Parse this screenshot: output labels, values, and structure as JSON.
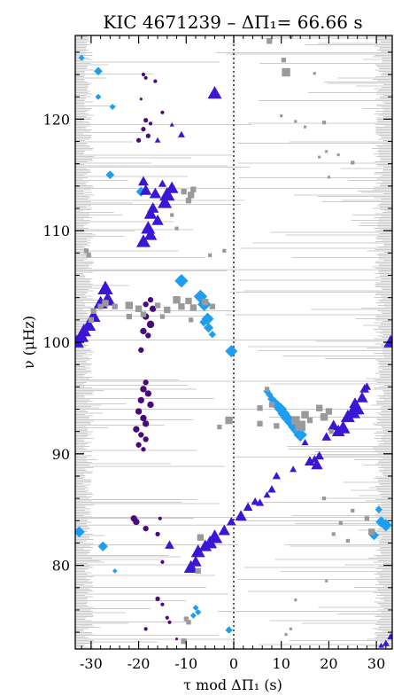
{
  "chart_data": {
    "type": "scatter",
    "title": "KIC 4671239  –  ΔΠ₁= 66.66 s",
    "xlabel": "τ mod ΔΠ₁  (s)",
    "ylabel": "ν (μHz)",
    "xlim": [
      -33.33,
      33.33
    ],
    "ylim": [
      72.5,
      127.5
    ],
    "xticks": [
      "-30",
      "-20",
      "-10",
      "0",
      "10",
      "20",
      "30"
    ],
    "yticks": [
      "80",
      "90",
      "100",
      "110",
      "120"
    ],
    "xtick_values": [
      -30,
      -20,
      -10,
      0,
      10,
      20,
      30
    ],
    "ytick_values": [
      80,
      90,
      100,
      110,
      120
    ],
    "vline_x": 0,
    "grid": false,
    "colors": {
      "gray": "#9a9a9a",
      "background": "#cccccc",
      "cyan": "#1e9ef0",
      "blue": "#3b16d4",
      "purple": "#4a0a78"
    },
    "series": [
      {
        "marker": "diamond",
        "color": "cyan",
        "points": [
          [
            -32,
            125.5,
            5
          ],
          [
            -28.5,
            124.3,
            7
          ],
          [
            -28.5,
            122,
            5
          ],
          [
            -25.5,
            121.1,
            5
          ],
          [
            -26,
            115,
            7
          ],
          [
            -19.5,
            113.5,
            8
          ],
          [
            -11,
            105.5,
            11
          ],
          [
            -7,
            104.1,
            11
          ],
          [
            -6.2,
            103.4,
            11
          ],
          [
            -5.5,
            102.1,
            10
          ],
          [
            -6.3,
            101.8,
            7
          ],
          [
            -5.3,
            101.3,
            8
          ],
          [
            -4.5,
            100.7,
            6
          ],
          [
            -0.5,
            99.2,
            10
          ],
          [
            7,
            95.6,
            6
          ],
          [
            7.5,
            95.3,
            6
          ],
          [
            8,
            94.9,
            7
          ],
          [
            8.6,
            94.6,
            8
          ],
          [
            9.2,
            94.3,
            9
          ],
          [
            9.9,
            94,
            10
          ],
          [
            10.5,
            93.6,
            10
          ],
          [
            11.2,
            93.2,
            10
          ],
          [
            11.9,
            92.8,
            9
          ],
          [
            12.6,
            92.4,
            9
          ],
          [
            13.3,
            92.1,
            10
          ],
          [
            14,
            91.7,
            11
          ],
          [
            -32.5,
            83,
            9
          ],
          [
            -27.5,
            81.7,
            8
          ],
          [
            -25,
            79.5,
            4
          ],
          [
            -8,
            76.2,
            5
          ],
          [
            -7.5,
            75.8,
            5
          ],
          [
            -8.5,
            75.5,
            5
          ],
          [
            -1,
            74.2,
            6
          ],
          [
            29.5,
            82.7,
            8
          ],
          [
            30.5,
            85,
            6
          ],
          [
            31,
            83.9,
            9
          ],
          [
            32,
            83.6,
            10
          ]
        ]
      },
      {
        "marker": "triangle",
        "color": "blue",
        "points": [
          [
            -15,
            114.2,
            7
          ],
          [
            -13,
            113.8,
            11
          ],
          [
            -14,
            113.2,
            13
          ],
          [
            -14.5,
            112.5,
            12
          ],
          [
            -17,
            112,
            10
          ],
          [
            -17.5,
            111.5,
            11
          ],
          [
            -16,
            110.9,
            10
          ],
          [
            -18,
            110.2,
            12
          ],
          [
            -17.5,
            109.6,
            11
          ],
          [
            -19,
            109,
            12
          ],
          [
            -4,
            122.3,
            12
          ],
          [
            -11,
            118.6,
            6
          ],
          [
            -16,
            118.1,
            5
          ],
          [
            -13,
            119.5,
            4
          ],
          [
            -27,
            104.8,
            13
          ],
          [
            -26.5,
            103.8,
            13
          ],
          [
            -28,
            103.5,
            12
          ],
          [
            -29.5,
            102.3,
            12
          ],
          [
            -30.5,
            101.5,
            12
          ],
          [
            -31.5,
            101,
            12
          ],
          [
            -32,
            100.5,
            12
          ],
          [
            -33,
            100,
            12
          ],
          [
            -19,
            114.4,
            9
          ],
          [
            -18.5,
            113.6,
            10
          ],
          [
            -16.5,
            113.3,
            10
          ],
          [
            15,
            91,
            6
          ],
          [
            17,
            89.5,
            7
          ],
          [
            16,
            89.3,
            9
          ],
          [
            17.5,
            89,
            10
          ],
          [
            18,
            89.8,
            8
          ],
          [
            19.5,
            91.5,
            8
          ],
          [
            21,
            92.5,
            10
          ],
          [
            22,
            92,
            11
          ],
          [
            23,
            92.3,
            12
          ],
          [
            24,
            93.3,
            12
          ],
          [
            25,
            93.7,
            13
          ],
          [
            26,
            94,
            12
          ],
          [
            27,
            95,
            10
          ],
          [
            25.5,
            94.5,
            10
          ],
          [
            27.5,
            95.8,
            8
          ],
          [
            28,
            96,
            7
          ],
          [
            12.5,
            88.6,
            6
          ],
          [
            9,
            88,
            7
          ],
          [
            5.5,
            85.6,
            7
          ],
          [
            7,
            86.3,
            6
          ],
          [
            8,
            86.8,
            7
          ],
          [
            1.5,
            84.4,
            10
          ],
          [
            3,
            85.2,
            8
          ],
          [
            4.5,
            85.7,
            7
          ],
          [
            -0.5,
            83.9,
            8
          ],
          [
            -2,
            83.1,
            10
          ],
          [
            -4,
            82.5,
            13
          ],
          [
            -5,
            82,
            12
          ],
          [
            -6,
            81.7,
            11
          ],
          [
            -7.5,
            81.2,
            12
          ],
          [
            -8,
            80.3,
            10
          ],
          [
            -9,
            79.8,
            12
          ],
          [
            -13.5,
            81.8,
            8
          ],
          [
            33,
            100,
            12
          ],
          [
            32,
            73,
            6
          ],
          [
            33,
            73.6,
            6
          ],
          [
            31,
            72.8,
            5
          ]
        ]
      },
      {
        "marker": "circle",
        "color": "purple",
        "points": [
          [
            -19,
            124,
            4
          ],
          [
            -18.5,
            123.7,
            4
          ],
          [
            -16.5,
            123.4,
            4
          ],
          [
            -19.5,
            121.8,
            3
          ],
          [
            -15,
            120.6,
            4
          ],
          [
            -18.5,
            119.9,
            5
          ],
          [
            -17.5,
            119.6,
            4
          ],
          [
            -19,
            119.1,
            5
          ],
          [
            -18,
            118.5,
            5
          ],
          [
            -20,
            118.1,
            5
          ],
          [
            -17.5,
            103.8,
            6
          ],
          [
            -18.5,
            103.4,
            6
          ],
          [
            -17,
            103,
            7
          ],
          [
            -18.5,
            102.3,
            7
          ],
          [
            -17.5,
            101.6,
            8
          ],
          [
            -19,
            101,
            7
          ],
          [
            -18,
            100.6,
            6
          ],
          [
            -19.5,
            99.3,
            6
          ],
          [
            -18.5,
            96.4,
            6
          ],
          [
            -19,
            95.8,
            7
          ],
          [
            -18,
            95.4,
            7
          ],
          [
            -19.5,
            94.8,
            7
          ],
          [
            -17.5,
            94.4,
            7
          ],
          [
            -20,
            93.8,
            7
          ],
          [
            -19,
            93.2,
            7
          ],
          [
            -18.5,
            92.7,
            7
          ],
          [
            -20.5,
            92.2,
            7
          ],
          [
            -19.5,
            91.7,
            6
          ],
          [
            -18.5,
            91.3,
            6
          ],
          [
            -20,
            90.8,
            6
          ],
          [
            -19,
            90.4,
            5
          ],
          [
            -21,
            84.2,
            7
          ],
          [
            -20.5,
            83.9,
            7
          ],
          [
            -18.5,
            83.3,
            6
          ],
          [
            -16,
            82.8,
            5
          ],
          [
            -15.5,
            84.2,
            4
          ],
          [
            -15,
            80.3,
            4
          ],
          [
            -16,
            77,
            5
          ],
          [
            -15,
            76.5,
            4
          ],
          [
            -14,
            75.3,
            4
          ],
          [
            -13.5,
            74.9,
            4
          ],
          [
            -18.5,
            74.3,
            4
          ],
          [
            -12,
            73.4,
            3
          ]
        ]
      },
      {
        "marker": "square",
        "color": "gray",
        "points": [
          [
            -8.5,
            113.7,
            6
          ],
          [
            -9,
            113.2,
            7
          ],
          [
            -10.5,
            113.5,
            6
          ],
          [
            -9.5,
            112.7,
            6
          ],
          [
            -13,
            111.4,
            4
          ],
          [
            -12,
            110.2,
            4
          ],
          [
            -31,
            108.2,
            5
          ],
          [
            -30.5,
            107.8,
            5
          ],
          [
            -5,
            107.8,
            4
          ],
          [
            -2,
            108.2,
            4
          ],
          [
            -28,
            103.2,
            6
          ],
          [
            -29.5,
            102.8,
            6
          ],
          [
            -30,
            102,
            6
          ],
          [
            -27,
            103.5,
            7
          ],
          [
            -25,
            103.2,
            6
          ],
          [
            -22,
            103.3,
            8
          ],
          [
            -20,
            103,
            7
          ],
          [
            -16,
            103.3,
            6
          ],
          [
            -14,
            102.9,
            7
          ],
          [
            -12,
            103.8,
            8
          ],
          [
            -11,
            103.2,
            7
          ],
          [
            -9.5,
            103.7,
            7
          ],
          [
            -8.5,
            103.1,
            7
          ],
          [
            -6,
            103.6,
            7
          ],
          [
            -4.5,
            103.2,
            6
          ],
          [
            -22,
            102.3,
            6
          ],
          [
            -19,
            102.5,
            6
          ],
          [
            -15,
            102.3,
            5
          ],
          [
            -9,
            102,
            5
          ],
          [
            7.5,
            127,
            6
          ],
          [
            12,
            127.4,
            4
          ],
          [
            10,
            120.3,
            3
          ],
          [
            13,
            119.8,
            3
          ],
          [
            15,
            119.3,
            3
          ],
          [
            17,
            124.1,
            3
          ],
          [
            18,
            116.6,
            3
          ],
          [
            19,
            119.7,
            4
          ],
          [
            19.5,
            117.1,
            3
          ],
          [
            20,
            114.8,
            3
          ],
          [
            22,
            116.8,
            3
          ],
          [
            25,
            116.1,
            4
          ],
          [
            11,
            124.2,
            9
          ],
          [
            10.5,
            125.3,
            5
          ],
          [
            5.5,
            94.1,
            6
          ],
          [
            7,
            95.8,
            5
          ],
          [
            8,
            94.4,
            6
          ],
          [
            13,
            93,
            9
          ],
          [
            14,
            92.5,
            11
          ],
          [
            15,
            93.5,
            8
          ],
          [
            16,
            93,
            6
          ],
          [
            18,
            94.1,
            7
          ],
          [
            19,
            93.3,
            8
          ],
          [
            20,
            93.8,
            7
          ],
          [
            -1,
            93,
            8
          ],
          [
            -3,
            92.4,
            5
          ],
          [
            5.5,
            92.7,
            6
          ],
          [
            9,
            92.5,
            6
          ],
          [
            20.5,
            92,
            5
          ],
          [
            -7,
            82.5,
            7
          ],
          [
            -7.5,
            79.5,
            6
          ],
          [
            -10,
            75.2,
            5
          ],
          [
            -9.5,
            74.9,
            5
          ],
          [
            -10.5,
            73.2,
            6
          ],
          [
            28,
            84.2,
            5
          ],
          [
            29,
            83,
            7
          ],
          [
            25,
            84.9,
            4
          ],
          [
            19,
            86,
            4
          ],
          [
            21,
            82.8,
            4
          ],
          [
            22.5,
            83.8,
            4
          ],
          [
            24,
            82.2,
            4
          ],
          [
            19.5,
            78.6,
            3
          ],
          [
            13,
            76.9,
            3
          ],
          [
            12,
            74.3,
            3
          ],
          [
            11,
            73.8,
            3
          ]
        ]
      }
    ]
  }
}
